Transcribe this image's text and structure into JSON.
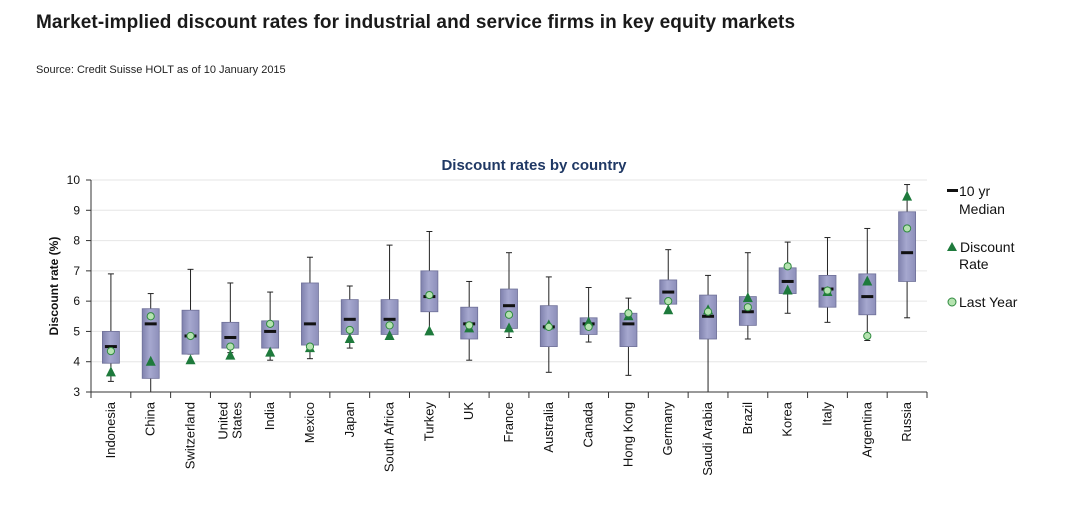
{
  "header": {
    "title": "Market-implied discount rates for industrial and service firms in key equity markets",
    "source": "Source: Credit Suisse HOLT as of 10 January 2015"
  },
  "colors": {
    "box_fill": "#a6a8cf",
    "box_edge": "#6e7098",
    "whisker": "#222222",
    "median": "#111111",
    "discount_rate": "#1e7a3c",
    "last_year_fill": "#b5e3b0",
    "last_year_edge": "#2f8a3f",
    "grid": "#e6e6e6",
    "title": "#1f3864"
  },
  "chart_data": {
    "type": "box",
    "title": "Discount rates by country",
    "ylabel": "Discount rate (%)",
    "ylim": [
      3,
      10
    ],
    "yticks": [
      3,
      4,
      5,
      6,
      7,
      8,
      9,
      10
    ],
    "grid": true,
    "legend_position": "right",
    "legend": [
      "10 yr Median",
      "Discount Rate",
      "Last Year"
    ],
    "categories": [
      {
        "label": [
          "Indonesia"
        ],
        "min": 3.35,
        "q1": 3.95,
        "median": 4.5,
        "q3": 5.0,
        "max": 6.9,
        "discount": 3.65,
        "last_year": 4.35
      },
      {
        "label": [
          "China"
        ],
        "min": 3.0,
        "q1": 3.45,
        "median": 5.25,
        "q3": 5.75,
        "max": 6.25,
        "discount": 4.0,
        "last_year": 5.5
      },
      {
        "label": [
          "Switzerland"
        ],
        "min": 4.25,
        "q1": 4.25,
        "median": 4.85,
        "q3": 5.7,
        "max": 7.05,
        "discount": 4.05,
        "last_year": 4.85
      },
      {
        "label": [
          "United",
          "States"
        ],
        "min": 4.3,
        "q1": 4.45,
        "median": 4.8,
        "q3": 5.3,
        "max": 6.6,
        "discount": 4.2,
        "last_year": 4.5
      },
      {
        "label": [
          "India"
        ],
        "min": 4.05,
        "q1": 4.45,
        "median": 5.0,
        "q3": 5.35,
        "max": 6.3,
        "discount": 4.3,
        "last_year": 5.25
      },
      {
        "label": [
          "Mexico"
        ],
        "min": 4.1,
        "q1": 4.55,
        "median": 5.25,
        "q3": 6.6,
        "max": 7.45,
        "discount": 4.45,
        "last_year": 4.5
      },
      {
        "label": [
          "Japan"
        ],
        "min": 4.45,
        "q1": 4.9,
        "median": 5.4,
        "q3": 6.05,
        "max": 6.5,
        "discount": 4.75,
        "last_year": 5.05
      },
      {
        "label": [
          "South Africa"
        ],
        "min": 4.85,
        "q1": 4.9,
        "median": 5.4,
        "q3": 6.05,
        "max": 7.85,
        "discount": 4.85,
        "last_year": 5.2
      },
      {
        "label": [
          "Turkey"
        ],
        "min": 5.0,
        "q1": 5.65,
        "median": 6.15,
        "q3": 7.0,
        "max": 8.3,
        "discount": 5.0,
        "last_year": 6.2
      },
      {
        "label": [
          "UK"
        ],
        "min": 4.05,
        "q1": 4.75,
        "median": 5.25,
        "q3": 5.8,
        "max": 6.65,
        "discount": 5.1,
        "last_year": 5.2
      },
      {
        "label": [
          "France"
        ],
        "min": 4.8,
        "q1": 5.1,
        "median": 5.85,
        "q3": 6.4,
        "max": 7.6,
        "discount": 5.1,
        "last_year": 5.55
      },
      {
        "label": [
          "Australia"
        ],
        "min": 3.65,
        "q1": 4.5,
        "median": 5.15,
        "q3": 5.85,
        "max": 6.8,
        "discount": 5.2,
        "last_year": 5.15
      },
      {
        "label": [
          "Canada"
        ],
        "min": 4.65,
        "q1": 4.9,
        "median": 5.25,
        "q3": 5.45,
        "max": 6.45,
        "discount": 5.3,
        "last_year": 5.15
      },
      {
        "label": [
          "Hong Kong"
        ],
        "min": 3.55,
        "q1": 4.5,
        "median": 5.25,
        "q3": 5.6,
        "max": 6.1,
        "discount": 5.5,
        "last_year": 5.6
      },
      {
        "label": [
          "Germany"
        ],
        "min": 5.65,
        "q1": 5.9,
        "median": 6.3,
        "q3": 6.7,
        "max": 7.7,
        "discount": 5.7,
        "last_year": 6.0
      },
      {
        "label": [
          "Saudi Arabia"
        ],
        "min": 3.0,
        "q1": 4.75,
        "median": 5.5,
        "q3": 6.2,
        "max": 6.85,
        "discount": 5.7,
        "last_year": 5.65
      },
      {
        "label": [
          "Brazil"
        ],
        "min": 4.75,
        "q1": 5.2,
        "median": 5.65,
        "q3": 6.15,
        "max": 7.6,
        "discount": 6.1,
        "last_year": 5.8
      },
      {
        "label": [
          "Korea"
        ],
        "min": 5.6,
        "q1": 6.25,
        "median": 6.65,
        "q3": 7.1,
        "max": 7.95,
        "discount": 6.35,
        "last_year": 7.15
      },
      {
        "label": [
          "Italy"
        ],
        "min": 5.3,
        "q1": 5.8,
        "median": 6.4,
        "q3": 6.85,
        "max": 8.1,
        "discount": 6.3,
        "last_year": 6.35
      },
      {
        "label": [
          "Argentina"
        ],
        "min": 4.7,
        "q1": 5.55,
        "median": 6.15,
        "q3": 6.9,
        "max": 8.4,
        "discount": 6.65,
        "last_year": 4.85
      },
      {
        "label": [
          "Russia"
        ],
        "min": 5.45,
        "q1": 6.65,
        "median": 7.6,
        "q3": 8.95,
        "max": 9.85,
        "discount": 9.45,
        "last_year": 8.4
      }
    ]
  }
}
